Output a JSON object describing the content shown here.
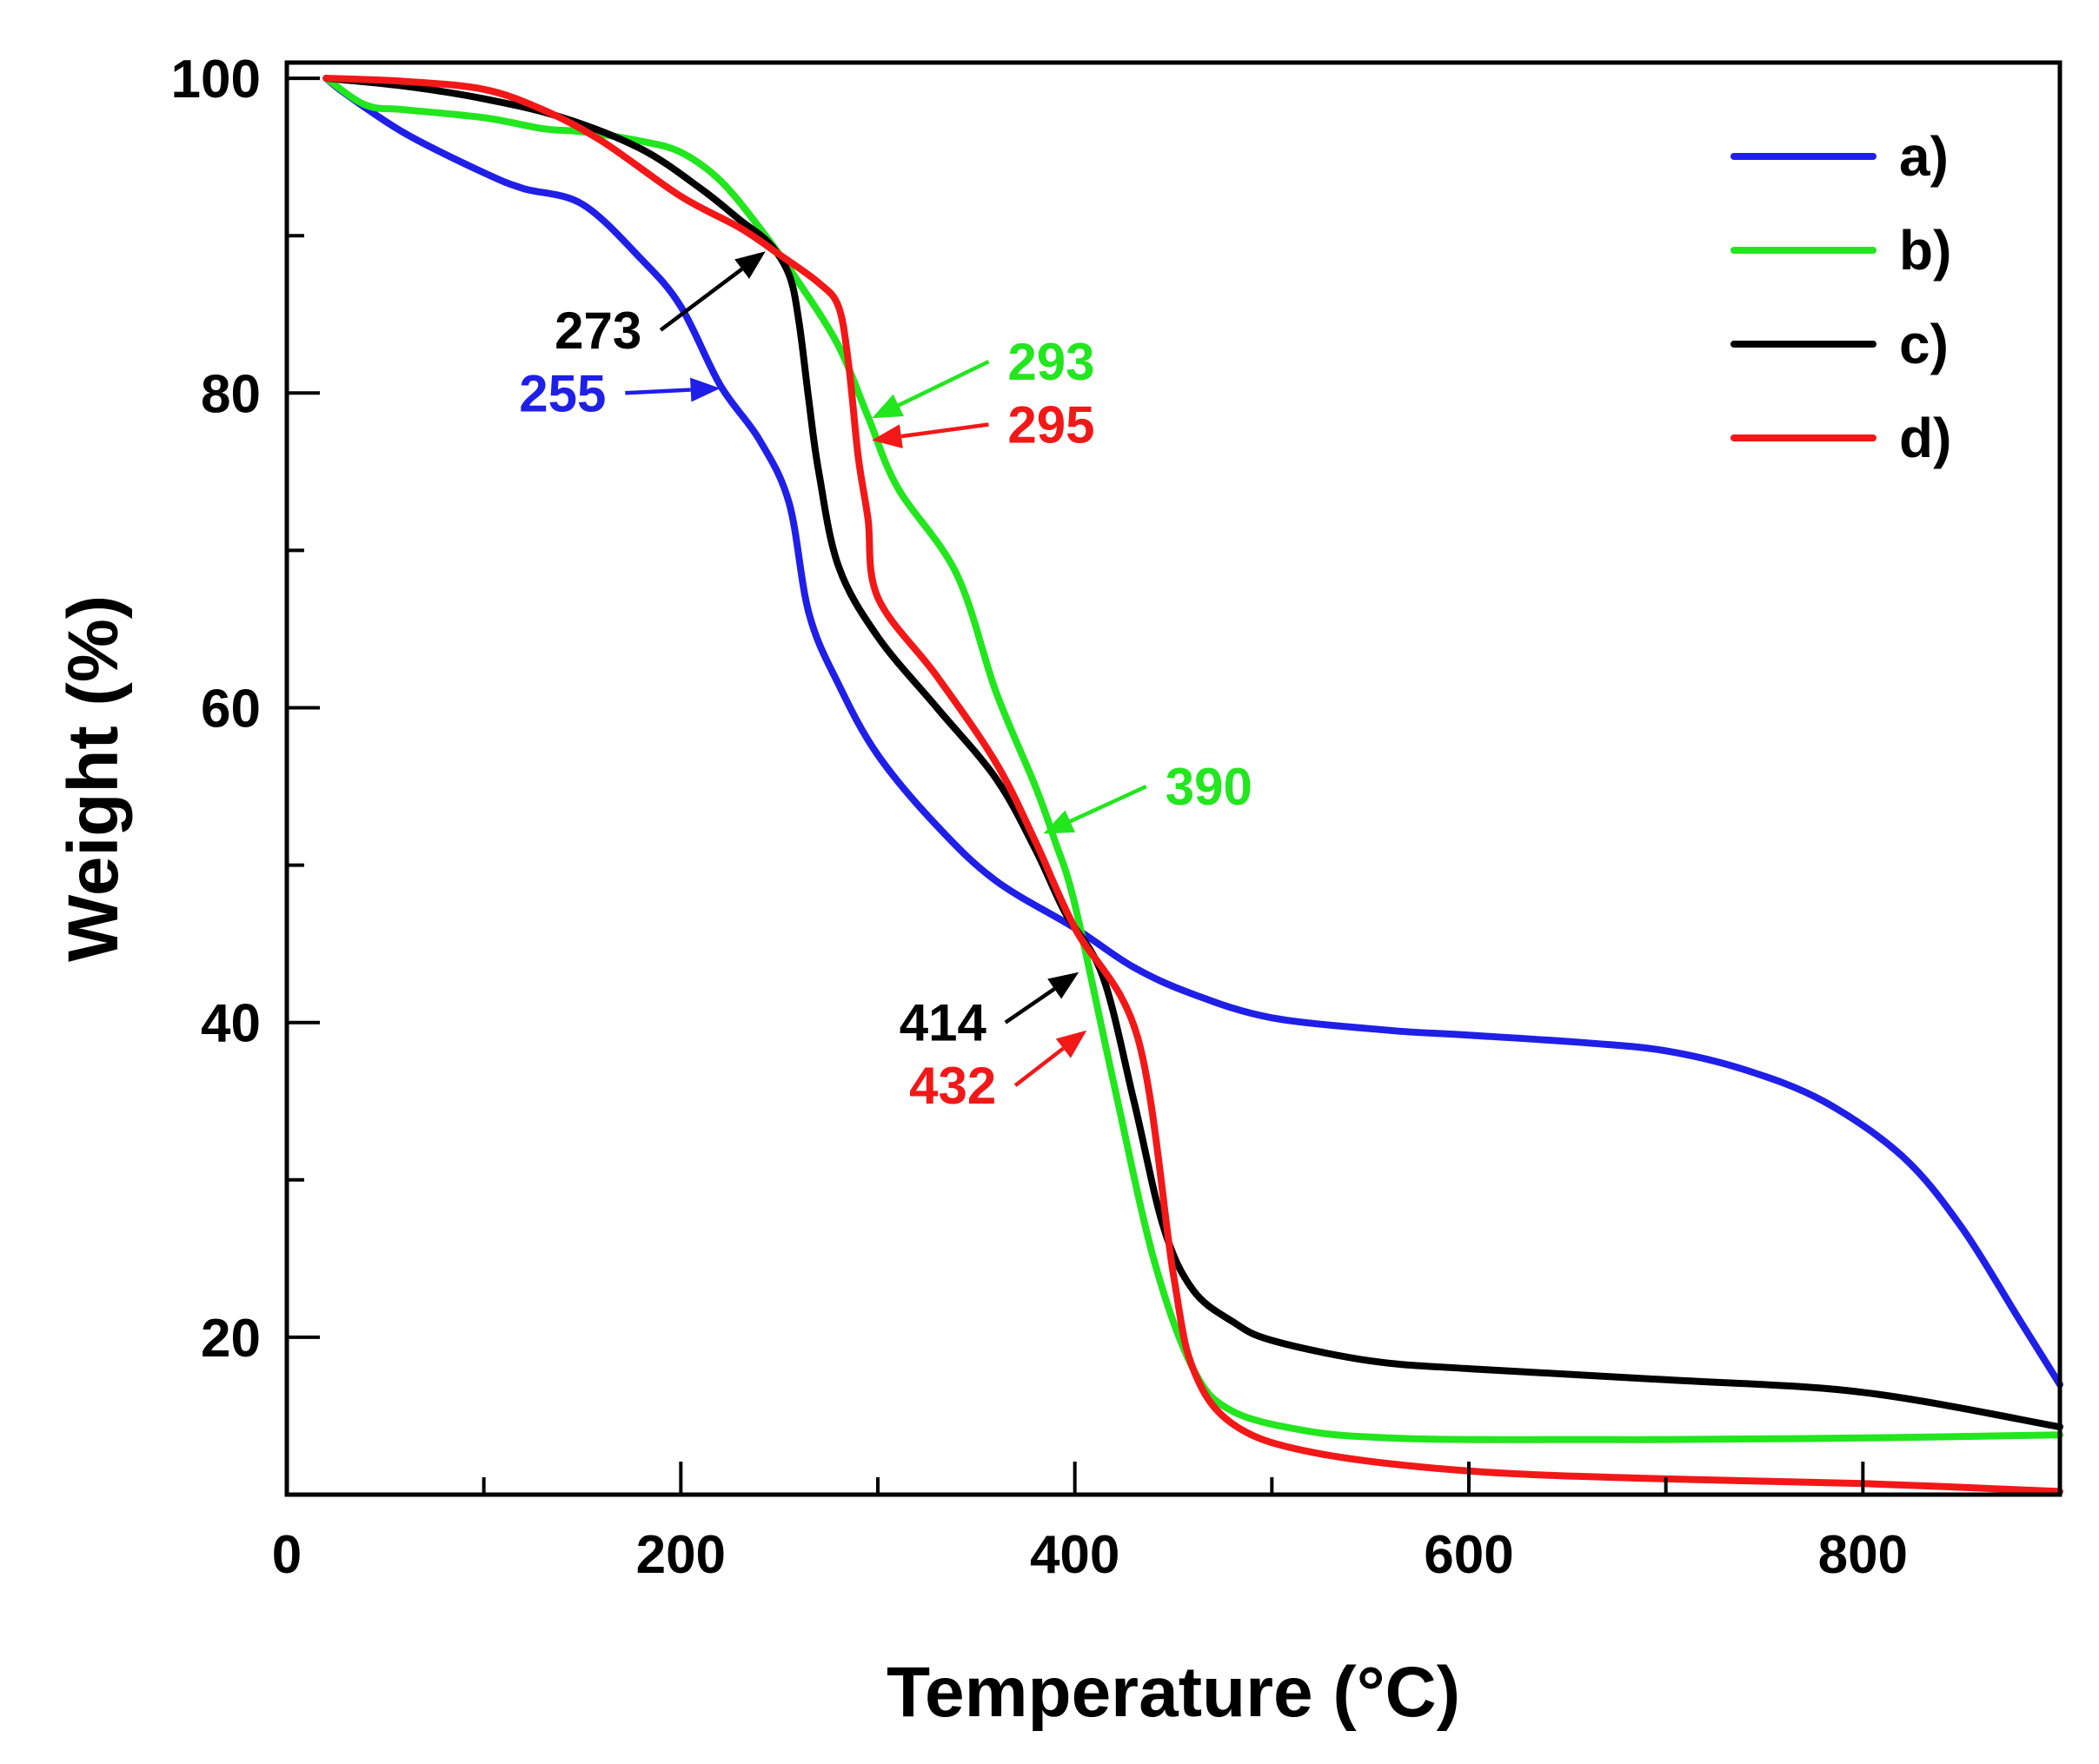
{
  "chart_data": {
    "type": "line",
    "title": "",
    "xlabel": "Temperature (°C)",
    "ylabel": "Weight (%)",
    "xlim": [
      0,
      900
    ],
    "ylim": [
      10,
      101
    ],
    "xticks": [
      0,
      200,
      400,
      600,
      800
    ],
    "yticks": [
      20,
      40,
      60,
      80,
      100
    ],
    "xtick_labels": [
      "0",
      "200",
      "400",
      "600",
      "800"
    ],
    "ytick_labels": [
      "20",
      "40",
      "60",
      "80",
      "100"
    ],
    "grid": false,
    "legend_position": "top-right",
    "series": [
      {
        "name": "a)",
        "color": "#1f1fe8",
        "x": [
          20,
          30,
          60,
          100,
          120,
          150,
          180,
          200,
          220,
          240,
          255,
          265,
          280,
          300,
          330,
          360,
          400,
          430,
          460,
          500,
          560,
          600,
          660,
          700,
          740,
          780,
          820,
          850,
          880,
          900
        ],
        "y": [
          100,
          99,
          96.5,
          94,
          93,
          92,
          88.5,
          85.5,
          80.5,
          77,
          73,
          66,
          61.5,
          57,
          52.5,
          49,
          46,
          43.5,
          41.8,
          40.3,
          39.5,
          39.2,
          38.7,
          38.2,
          37,
          35,
          31.5,
          27,
          21,
          17
        ]
      },
      {
        "name": "b)",
        "color": "#22e61e",
        "x": [
          20,
          40,
          60,
          100,
          130,
          150,
          180,
          200,
          220,
          240,
          260,
          280,
          295,
          310,
          340,
          360,
          380,
          390,
          400,
          420,
          440,
          460,
          480,
          520,
          560,
          600,
          660,
          700,
          800,
          900
        ],
        "y": [
          100,
          98.3,
          98,
          97.5,
          96.8,
          96.6,
          96,
          95.3,
          93.5,
          90.5,
          87,
          83,
          78.5,
          74,
          68.5,
          61,
          55,
          51.5,
          47.5,
          36,
          25,
          18,
          15.3,
          14,
          13.6,
          13.5,
          13.5,
          13.5,
          13.6,
          13.8
        ]
      },
      {
        "name": "c)",
        "color": "#000000",
        "x": [
          20,
          60,
          100,
          140,
          180,
          210,
          230,
          245,
          255,
          260,
          265,
          270,
          280,
          300,
          330,
          360,
          380,
          395,
          414,
          430,
          445,
          460,
          480,
          500,
          550,
          600,
          700,
          800,
          900
        ],
        "y": [
          100,
          99.5,
          98.7,
          97.5,
          95.5,
          93,
          91,
          89.5,
          87.5,
          84.5,
          79.5,
          75,
          69,
          64.5,
          60,
          55.5,
          51,
          47,
          43,
          35,
          27,
          23,
          21,
          19.8,
          18.5,
          18,
          17.3,
          16.5,
          14.3
        ]
      },
      {
        "name": "d)",
        "color": "#f21818",
        "x": [
          20,
          60,
          100,
          130,
          160,
          200,
          230,
          250,
          270,
          280,
          285,
          290,
          295,
          300,
          330,
          360,
          380,
          400,
          432,
          450,
          460,
          480,
          520,
          600,
          700,
          800,
          900
        ],
        "y": [
          100,
          99.8,
          99.3,
          98,
          96,
          92.5,
          90.5,
          88.8,
          87,
          85.5,
          82,
          76,
          72,
          67,
          62,
          56.5,
          51.5,
          46,
          39,
          24,
          18,
          14.5,
          12.7,
          11.5,
          11,
          10.7,
          10.2
        ]
      }
    ],
    "annotations": [
      {
        "text": "273",
        "series": "c)",
        "color": "#000000",
        "point": [
          243,
          89
        ],
        "label_at": [
          158,
          84
        ]
      },
      {
        "text": "255",
        "series": "a)",
        "color": "#1f1fe8",
        "point": [
          220,
          80.3
        ],
        "label_at": [
          140,
          80
        ]
      },
      {
        "text": "293",
        "series": "b)",
        "color": "#22e61e",
        "point": [
          297,
          78.4
        ],
        "label_at": [
          388,
          82
        ]
      },
      {
        "text": "295",
        "series": "d)",
        "color": "#f21818",
        "point": [
          297,
          77
        ],
        "label_at": [
          388,
          78
        ]
      },
      {
        "text": "390",
        "series": "b)",
        "color": "#22e61e",
        "point": [
          384,
          52
        ],
        "label_at": [
          468,
          55
        ]
      },
      {
        "text": "414",
        "series": "c)",
        "color": "#000000",
        "point": [
          402,
          43.2
        ],
        "label_at": [
          333,
          40
        ]
      },
      {
        "text": "432",
        "series": "d)",
        "color": "#f21818",
        "point": [
          406,
          39.5
        ],
        "label_at": [
          338,
          36
        ]
      }
    ]
  }
}
